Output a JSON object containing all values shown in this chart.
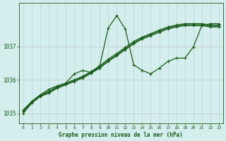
{
  "title": "Graphe pression niveau de la mer (hPa)",
  "bg_color": "#d4eded",
  "grid_color_v": "#b8d8d8",
  "grid_color_h": "#c8c8c8",
  "line_color": "#1a5c1a",
  "text_color": "#1a5c1a",
  "xlim": [
    -0.5,
    23.5
  ],
  "ylim": [
    1034.7,
    1038.3
  ],
  "yticks": [
    1035,
    1036,
    1037
  ],
  "xticks": [
    0,
    1,
    2,
    3,
    4,
    5,
    6,
    7,
    8,
    9,
    10,
    11,
    12,
    13,
    14,
    15,
    16,
    17,
    18,
    19,
    20,
    21,
    22,
    23
  ],
  "series": [
    {
      "x": [
        0,
        1,
        2,
        3,
        4,
        5,
        6,
        7,
        8,
        9,
        10,
        11,
        12,
        13,
        14,
        15,
        16,
        17,
        18,
        19,
        20,
        21,
        22,
        23
      ],
      "y": [
        1035.0,
        1035.3,
        1035.5,
        1035.6,
        1035.75,
        1035.85,
        1035.95,
        1036.05,
        1036.2,
        1036.35,
        1036.55,
        1036.72,
        1036.9,
        1037.08,
        1037.22,
        1037.32,
        1037.42,
        1037.52,
        1037.58,
        1037.62,
        1037.62,
        1037.62,
        1037.58,
        1037.58
      ],
      "linewidth": 0.9,
      "marker": "+"
    },
    {
      "x": [
        0,
        1,
        2,
        3,
        4,
        5,
        6,
        7,
        8,
        9,
        10,
        11,
        12,
        13,
        14,
        15,
        16,
        17,
        18,
        19,
        20,
        21,
        22,
        23
      ],
      "y": [
        1035.05,
        1035.32,
        1035.52,
        1035.63,
        1035.77,
        1035.87,
        1035.97,
        1036.08,
        1036.22,
        1036.38,
        1036.58,
        1036.75,
        1036.93,
        1037.11,
        1037.25,
        1037.35,
        1037.46,
        1037.55,
        1037.61,
        1037.65,
        1037.65,
        1037.65,
        1037.61,
        1037.61
      ],
      "linewidth": 0.9,
      "marker": "+"
    },
    {
      "x": [
        0,
        1,
        2,
        3,
        4,
        5,
        6,
        7,
        8,
        9,
        10,
        11,
        12,
        13,
        14,
        15,
        16,
        17,
        18,
        19,
        20,
        21,
        22,
        23
      ],
      "y": [
        1035.1,
        1035.35,
        1035.55,
        1035.66,
        1035.8,
        1035.9,
        1036.0,
        1036.11,
        1036.25,
        1036.42,
        1036.62,
        1036.79,
        1036.97,
        1037.15,
        1037.28,
        1037.38,
        1037.49,
        1037.58,
        1037.64,
        1037.68,
        1037.68,
        1037.68,
        1037.64,
        1037.64
      ],
      "linewidth": 0.9,
      "marker": "+"
    },
    {
      "x": [
        0,
        1,
        2,
        3,
        4,
        5,
        6,
        7,
        8,
        9,
        10,
        11,
        12,
        13,
        14,
        15,
        16,
        17,
        18,
        19,
        20,
        21,
        22,
        23
      ],
      "y": [
        1035.05,
        1035.35,
        1035.55,
        1035.72,
        1035.82,
        1035.9,
        1036.18,
        1036.28,
        1036.22,
        1036.42,
        1037.55,
        1037.92,
        1037.52,
        1036.45,
        1036.28,
        1036.18,
        1036.35,
        1036.55,
        1036.65,
        1036.65,
        1036.98,
        1037.62,
        1037.68,
        1037.68
      ],
      "linewidth": 0.9,
      "marker": "+"
    }
  ]
}
